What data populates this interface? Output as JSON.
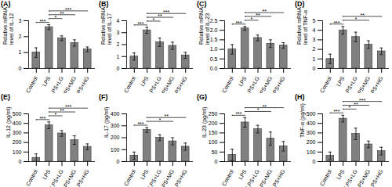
{
  "chart_data": [
    {
      "type": "bar",
      "title": "(A)",
      "ylabel": [
        "Relative mRNA",
        "level of IL-12"
      ],
      "categories": [
        "Control",
        "LPS",
        "LPS+LG",
        "LPS+MG",
        "LPS+HG"
      ],
      "values": [
        1.0,
        2.6,
        1.9,
        1.6,
        1.2
      ],
      "errors": [
        0.3,
        0.15,
        0.15,
        0.2,
        0.15
      ],
      "color": "#808080",
      "ylim": [
        0,
        3
      ],
      "yticks": [
        0,
        1,
        2,
        3
      ],
      "comparisons": [
        {
          "from": 0,
          "to": 1,
          "label": "***"
        },
        {
          "from": 1,
          "to": 2,
          "label": "*"
        },
        {
          "from": 1,
          "to": 3,
          "label": "**"
        },
        {
          "from": 1,
          "to": 4,
          "label": "***"
        }
      ]
    },
    {
      "type": "bar",
      "title": "(B)",
      "ylabel": [
        "Relative mRNA",
        "level of IL-17"
      ],
      "categories": [
        "Control",
        "LPS",
        "LPS+LG",
        "LPS+MG",
        "LPS+HG"
      ],
      "values": [
        1.0,
        3.2,
        2.2,
        1.9,
        1.1
      ],
      "errors": [
        0.3,
        0.25,
        0.35,
        0.3,
        0.25
      ],
      "color": "#808080",
      "ylim": [
        0,
        4
      ],
      "yticks": [
        0,
        1,
        2,
        3,
        4
      ],
      "comparisons": [
        {
          "from": 0,
          "to": 1,
          "label": "***"
        },
        {
          "from": 1,
          "to": 2,
          "label": "*"
        },
        {
          "from": 1,
          "to": 3,
          "label": "**"
        },
        {
          "from": 1,
          "to": 4,
          "label": "***"
        }
      ]
    },
    {
      "type": "bar",
      "title": "(C)",
      "ylabel": [
        "Relative mRNA",
        "level of IL-23"
      ],
      "categories": [
        "Control",
        "LPS",
        "LPS+LG",
        "LPS+MG",
        "LPS+HG"
      ],
      "values": [
        1.0,
        2.1,
        1.6,
        1.3,
        1.2
      ],
      "errors": [
        0.25,
        0.1,
        0.15,
        0.2,
        0.15
      ],
      "color": "#808080",
      "ylim": [
        0,
        2.5
      ],
      "yticks": [
        {
          "value": 0,
          "label": "0.0"
        },
        {
          "value": 0.5,
          "label": "0.5"
        },
        {
          "value": 1,
          "label": "1.0"
        },
        {
          "value": 1.5,
          "label": "1.5"
        },
        {
          "value": 2,
          "label": "2.0"
        },
        {
          "value": 2.5,
          "label": "2.5"
        }
      ],
      "comparisons": [
        {
          "from": 0,
          "to": 1,
          "label": "***"
        },
        {
          "from": 1,
          "to": 2,
          "label": "*"
        },
        {
          "from": 1,
          "to": 3,
          "label": "**"
        },
        {
          "from": 1,
          "to": 4,
          "label": "**"
        }
      ]
    },
    {
      "type": "bar",
      "title": "(D)",
      "ylabel": [
        "Relative mRNA",
        "level of TNF-α"
      ],
      "categories": [
        "Control",
        "LPS",
        "LPS+LG",
        "LPS+MG",
        "LPS+HG"
      ],
      "values": [
        1.0,
        4.0,
        3.3,
        2.5,
        1.8
      ],
      "errors": [
        0.5,
        0.4,
        0.5,
        0.4,
        0.35
      ],
      "color": "#808080",
      "ylim": [
        0,
        5
      ],
      "yticks": [
        0,
        1,
        2,
        3,
        4,
        5
      ],
      "comparisons": [
        {
          "from": 0,
          "to": 1,
          "label": "***"
        },
        {
          "from": 1,
          "to": 3,
          "label": "*"
        },
        {
          "from": 1,
          "to": 4,
          "label": "**"
        }
      ]
    },
    {
      "type": "bar",
      "title": "(E)",
      "ylabel": [
        "IL-12 (pg/ml)"
      ],
      "categories": [
        "Control",
        "LPS",
        "LPS+LG",
        "LPS+MG",
        "LPS+HG"
      ],
      "values": [
        40,
        380,
        295,
        225,
        155
      ],
      "errors": [
        40,
        35,
        30,
        45,
        30
      ],
      "color": "#808080",
      "ylim": [
        0,
        500
      ],
      "yticks": [
        0,
        100,
        200,
        300,
        400,
        500
      ],
      "comparisons": [
        {
          "from": 0,
          "to": 1,
          "label": "***"
        },
        {
          "from": 1,
          "to": 2,
          "label": "*"
        },
        {
          "from": 1,
          "to": 3,
          "label": "**"
        },
        {
          "from": 1,
          "to": 4,
          "label": "***"
        }
      ]
    },
    {
      "type": "bar",
      "title": "(F)",
      "ylabel": [
        "IL-17 (pg/ml)"
      ],
      "categories": [
        "Control",
        "LPS",
        "LPS+LG",
        "LPS+MG",
        "LPS+HG"
      ],
      "values": [
        50,
        265,
        200,
        170,
        125
      ],
      "errors": [
        30,
        20,
        25,
        30,
        30
      ],
      "color": "#808080",
      "ylim": [
        0,
        400
      ],
      "yticks": [
        0,
        100,
        200,
        300,
        400
      ],
      "comparisons": [
        {
          "from": 0,
          "to": 1,
          "label": "***"
        },
        {
          "from": 1,
          "to": 3,
          "label": "*"
        },
        {
          "from": 1,
          "to": 4,
          "label": "**"
        }
      ]
    },
    {
      "type": "bar",
      "title": "(G)",
      "ylabel": [
        "IL-23 (pg/ml)"
      ],
      "categories": [
        "Control",
        "LPS",
        "LPS+LG",
        "LPS+MG",
        "LPS+HG"
      ],
      "values": [
        35,
        205,
        170,
        120,
        80
      ],
      "errors": [
        30,
        25,
        20,
        35,
        25
      ],
      "color": "#808080",
      "ylim": [
        0,
        250
      ],
      "yticks": [
        0,
        50,
        100,
        150,
        200,
        250
      ],
      "comparisons": [
        {
          "from": 0,
          "to": 1,
          "label": "***"
        },
        {
          "from": 1,
          "to": 3,
          "label": "*"
        },
        {
          "from": 1,
          "to": 4,
          "label": "**"
        }
      ]
    },
    {
      "type": "bar",
      "title": "(H)",
      "ylabel": [
        "TNF-α (pg/ml)"
      ],
      "categories": [
        "Control",
        "LPS",
        "LPS+LG",
        "LPS+MG",
        "LPS+HG"
      ],
      "values": [
        60,
        450,
        290,
        180,
        110
      ],
      "errors": [
        40,
        35,
        60,
        35,
        40
      ],
      "color": "#808080",
      "ylim": [
        0,
        500
      ],
      "yticks": [
        0,
        100,
        200,
        300,
        400,
        500
      ],
      "comparisons": [
        {
          "from": 0,
          "to": 1,
          "label": "***"
        },
        {
          "from": 1,
          "to": 2,
          "label": "*"
        },
        {
          "from": 1,
          "to": 3,
          "label": "**"
        },
        {
          "from": 1,
          "to": 4,
          "label": "***"
        }
      ]
    }
  ]
}
